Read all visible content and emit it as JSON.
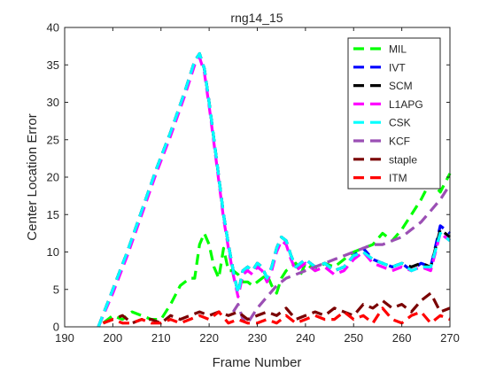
{
  "chart_data": {
    "type": "line",
    "title": "rng14_15",
    "xlabel": "Frame Number",
    "ylabel": "Center Location Error",
    "xlim": [
      190,
      270
    ],
    "ylim": [
      0,
      40
    ],
    "xticks": [
      190,
      200,
      210,
      220,
      230,
      240,
      250,
      260,
      270
    ],
    "yticks": [
      0,
      5,
      10,
      15,
      20,
      25,
      30,
      35,
      40
    ],
    "grid": false,
    "legend_position": "top-right",
    "line_style": "dashed",
    "series": [
      {
        "name": "MIL",
        "color": "#00ff00",
        "x": [
          198,
          200,
          202,
          204,
          206,
          208,
          210,
          212,
          214,
          216,
          217,
          218,
          219,
          220,
          221,
          222,
          223,
          224,
          225,
          226,
          227,
          228,
          229,
          230,
          231,
          232,
          233,
          234,
          235,
          236,
          237,
          238,
          239,
          240,
          242,
          244,
          246,
          248,
          250,
          252,
          254,
          256,
          258,
          260,
          262,
          264,
          266,
          268,
          270
        ],
        "y": [
          0.5,
          1.5,
          1.0,
          2.0,
          1.5,
          1.0,
          1.0,
          3.0,
          5.5,
          6.5,
          6.5,
          11.0,
          12.5,
          11.0,
          8.0,
          6.5,
          10.5,
          7.5,
          7.5,
          7.0,
          6.0,
          6.0,
          5.5,
          6.0,
          6.5,
          7.0,
          5.5,
          4.5,
          6.5,
          7.5,
          8.0,
          8.5,
          7.0,
          8.5,
          7.5,
          8.5,
          8.0,
          9.0,
          10.0,
          10.5,
          11.0,
          12.5,
          11.5,
          13.0,
          15.0,
          17.0,
          19.5,
          18.0,
          20.5
        ]
      },
      {
        "name": "IVT",
        "color": "#0000ff",
        "x": [
          197,
          200,
          203,
          206,
          209,
          212,
          215,
          217,
          218,
          219,
          220,
          221,
          222,
          223,
          224,
          225,
          226,
          227,
          228,
          229,
          230,
          231,
          232,
          233,
          234,
          235,
          236,
          237,
          238,
          240,
          242,
          244,
          246,
          248,
          250,
          252,
          254,
          256,
          258,
          260,
          262,
          264,
          266,
          268,
          270
        ],
        "y": [
          0,
          5,
          10,
          15.5,
          21,
          26,
          31.5,
          35.5,
          36.5,
          34.5,
          30,
          25,
          20,
          15,
          11,
          7.5,
          4.5,
          7.5,
          8.0,
          7.5,
          8.5,
          8.0,
          6.5,
          8.0,
          10.5,
          12.0,
          11.5,
          9.5,
          8.0,
          9.0,
          8.0,
          8.5,
          7.5,
          8.0,
          9.5,
          10.5,
          9.0,
          8.5,
          8.0,
          8.5,
          7.5,
          8.5,
          8.0,
          13.5,
          12.5
        ]
      },
      {
        "name": "SCM",
        "color": "#000000",
        "x": [
          197,
          200,
          203,
          206,
          209,
          212,
          215,
          217,
          218,
          219,
          220,
          221,
          222,
          223,
          224,
          225,
          226,
          227,
          228,
          229,
          230,
          231,
          232,
          233,
          234,
          235,
          236,
          237,
          238,
          240,
          242,
          244,
          246,
          248,
          250,
          252,
          254,
          256,
          258,
          260,
          262,
          264,
          266,
          268,
          270
        ],
        "y": [
          0,
          5,
          10,
          15.5,
          21,
          26,
          31.5,
          35.5,
          36.5,
          34.5,
          30,
          25,
          20,
          15,
          11,
          7.5,
          4.5,
          7.5,
          8.0,
          7.5,
          8.5,
          8.0,
          6.5,
          8.0,
          10.5,
          12.0,
          11.5,
          9.5,
          8.0,
          9.0,
          8.0,
          8.5,
          7.5,
          8.0,
          9.5,
          10.0,
          9.0,
          8.5,
          8.0,
          8.5,
          8.0,
          8.5,
          8.0,
          13.0,
          12.0
        ]
      },
      {
        "name": "L1APG",
        "color": "#ff00ff",
        "x": [
          197,
          200,
          203,
          206,
          209,
          212,
          215,
          217,
          218,
          219,
          220,
          221,
          222,
          223,
          224,
          225,
          226,
          227,
          228,
          229,
          230,
          231,
          232,
          233,
          234,
          235,
          236,
          237,
          238,
          240,
          242,
          244,
          246,
          248,
          250,
          252,
          254,
          256,
          258,
          260,
          262,
          264,
          266,
          268,
          270
        ],
        "y": [
          0,
          4.5,
          9.5,
          15,
          20.5,
          25.5,
          31,
          35,
          36.0,
          34.0,
          29.5,
          24.5,
          19.5,
          14.5,
          10.5,
          7.0,
          4.0,
          7.0,
          7.5,
          7.0,
          8.0,
          7.5,
          6.0,
          7.5,
          10.0,
          11.5,
          11.0,
          9.0,
          7.5,
          8.5,
          7.5,
          8.0,
          7.0,
          7.5,
          9.0,
          10.0,
          8.5,
          8.0,
          7.5,
          8.0,
          7.5,
          8.0,
          7.5,
          12.5,
          11.5
        ]
      },
      {
        "name": "CSK",
        "color": "#00ffff",
        "x": [
          197,
          200,
          203,
          206,
          209,
          212,
          215,
          217,
          218,
          219,
          220,
          221,
          222,
          223,
          224,
          225,
          226,
          227,
          228,
          229,
          230,
          231,
          232,
          233,
          234,
          235,
          236,
          237,
          238,
          240,
          242,
          244,
          246,
          248,
          250,
          252,
          254,
          256,
          258,
          260,
          262,
          264,
          266,
          268,
          270
        ],
        "y": [
          0,
          5,
          10,
          15.5,
          21,
          26,
          31.5,
          35.5,
          36.5,
          34.5,
          30,
          25,
          20,
          15,
          11,
          7.5,
          4.5,
          7.5,
          8.0,
          7.5,
          8.5,
          8.0,
          6.5,
          8.0,
          10.5,
          12.0,
          11.5,
          9.5,
          8.0,
          9.0,
          8.0,
          8.5,
          7.5,
          8.0,
          9.5,
          10.0,
          9.0,
          8.5,
          8.0,
          8.5,
          7.5,
          8.0,
          8.0,
          12.5,
          11.5
        ]
      },
      {
        "name": "KCF",
        "color": "#9b4fb4",
        "x": [
          225,
          226,
          227,
          228,
          229,
          230,
          232,
          234,
          236,
          238,
          240,
          242,
          244,
          246,
          248,
          250,
          252,
          254,
          256,
          258,
          260,
          262,
          264,
          266,
          268,
          270
        ],
        "y": [
          2.0,
          3.0,
          1.0,
          0.5,
          1.5,
          2.5,
          4.0,
          5.5,
          6.5,
          7.0,
          7.5,
          8.0,
          8.5,
          9.0,
          9.5,
          10.0,
          10.5,
          11.0,
          11.0,
          11.5,
          12.0,
          13.0,
          14.0,
          15.5,
          17.0,
          19.0
        ]
      },
      {
        "name": "staple",
        "color": "#7a0000",
        "x": [
          198,
          200,
          202,
          204,
          206,
          208,
          210,
          212,
          214,
          216,
          218,
          220,
          222,
          224,
          226,
          228,
          230,
          232,
          234,
          236,
          238,
          240,
          242,
          244,
          246,
          248,
          250,
          252,
          254,
          256,
          258,
          260,
          262,
          264,
          266,
          268,
          270
        ],
        "y": [
          0.5,
          1.0,
          1.5,
          0.5,
          1.0,
          1.0,
          0.5,
          1.5,
          1.0,
          1.5,
          2.0,
          1.5,
          2.0,
          1.5,
          2.0,
          1.0,
          1.5,
          2.0,
          1.5,
          2.5,
          1.0,
          1.5,
          2.0,
          1.5,
          2.5,
          2.0,
          1.5,
          3.0,
          2.5,
          3.5,
          2.5,
          3.0,
          2.0,
          3.5,
          4.5,
          2.0,
          2.5
        ]
      },
      {
        "name": "ITM",
        "color": "#ff0000",
        "x": [
          198,
          200,
          202,
          204,
          206,
          208,
          210,
          212,
          214,
          216,
          218,
          220,
          222,
          224,
          226,
          228,
          230,
          232,
          234,
          236,
          238,
          240,
          242,
          244,
          246,
          248,
          250,
          252,
          254,
          256,
          258,
          260,
          262,
          264,
          266,
          268,
          270
        ],
        "y": [
          0.5,
          1.0,
          0.5,
          0.5,
          1.0,
          0.5,
          0.5,
          1.0,
          0.5,
          1.0,
          1.5,
          1.0,
          2.0,
          0.5,
          1.0,
          0.5,
          0.5,
          1.0,
          0.5,
          1.5,
          0.5,
          1.0,
          1.5,
          1.0,
          1.0,
          2.0,
          1.0,
          1.5,
          0.5,
          2.5,
          1.0,
          0.5,
          1.5,
          2.0,
          0.5,
          1.5,
          1.0
        ]
      }
    ]
  }
}
